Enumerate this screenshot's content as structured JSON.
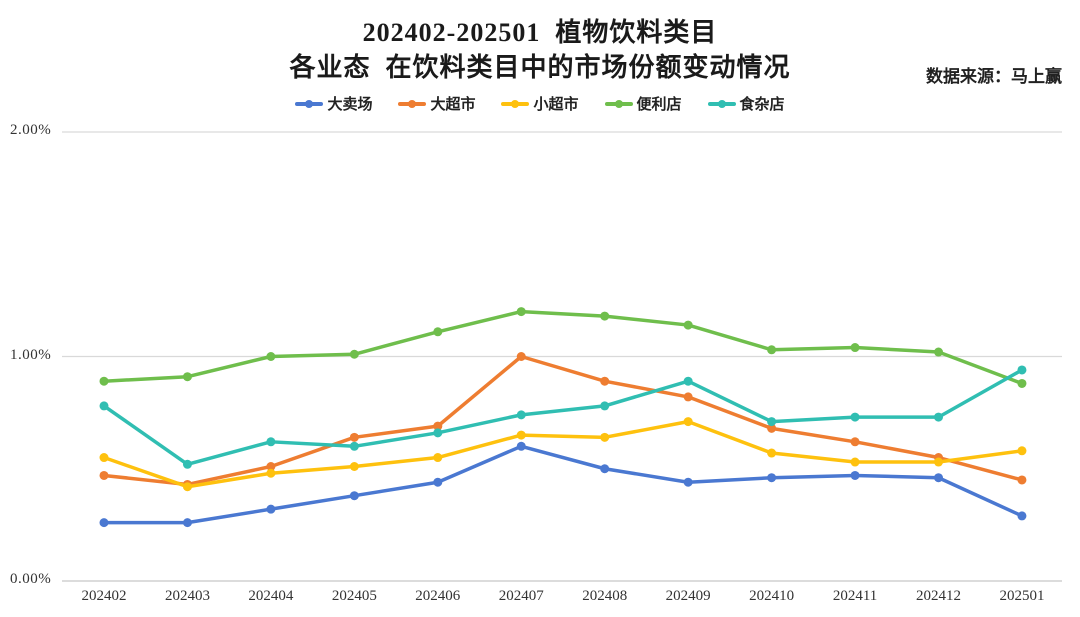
{
  "header": {
    "title_line1": "202402-202501  植物饮料类目",
    "title_line2": "各业态  在饮料类目中的市场份额变动情况",
    "source": "数据来源：马上赢"
  },
  "chart_data": {
    "type": "line",
    "title": "202402-202501 植物饮料类目 各业态 在饮料类目中的市场份额变动情况",
    "xlabel": "",
    "ylabel": "",
    "ylim": [
      0,
      2
    ],
    "grid": true,
    "legend_position": "top",
    "y_ticks": [
      {
        "value": 0,
        "label": "0.00%"
      },
      {
        "value": 1,
        "label": "1.00%"
      },
      {
        "value": 2,
        "label": "2.00%"
      }
    ],
    "categories": [
      "202402",
      "202403",
      "202404",
      "202405",
      "202406",
      "202407",
      "202408",
      "202409",
      "202410",
      "202411",
      "202412",
      "202501"
    ],
    "series": [
      {
        "name": "大卖场",
        "slug": "hypermarket",
        "color": "#4A78D1",
        "values": [
          0.26,
          0.26,
          0.32,
          0.38,
          0.44,
          0.6,
          0.5,
          0.44,
          0.46,
          0.47,
          0.46,
          0.29
        ]
      },
      {
        "name": "大超市",
        "slug": "supermarket",
        "color": "#EE7D31",
        "values": [
          0.47,
          0.43,
          0.51,
          0.64,
          0.69,
          1.0,
          0.89,
          0.82,
          0.68,
          0.62,
          0.55,
          0.45
        ]
      },
      {
        "name": "小超市",
        "slug": "mini-supermarket",
        "color": "#FEC10E",
        "values": [
          0.55,
          0.42,
          0.48,
          0.51,
          0.55,
          0.65,
          0.64,
          0.71,
          0.57,
          0.53,
          0.53,
          0.58
        ]
      },
      {
        "name": "便利店",
        "slug": "convenience-store",
        "color": "#6FBE4C",
        "values": [
          0.89,
          0.91,
          1.0,
          1.01,
          1.11,
          1.2,
          1.18,
          1.14,
          1.03,
          1.04,
          1.02,
          0.88
        ]
      },
      {
        "name": "食杂店",
        "slug": "grocery-store",
        "color": "#30BEB2",
        "values": [
          0.78,
          0.52,
          0.62,
          0.6,
          0.66,
          0.74,
          0.78,
          0.89,
          0.71,
          0.73,
          0.73,
          0.94
        ]
      }
    ],
    "style": {
      "gridline_color": "#D9D9D9",
      "baseline_color": "#C6C6C6",
      "line_width": 3.5,
      "marker_radius": 4.5
    }
  }
}
